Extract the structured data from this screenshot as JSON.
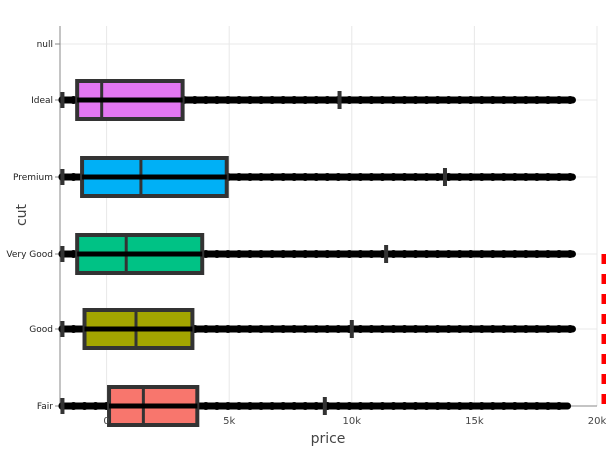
{
  "chart_data": {
    "type": "box",
    "orientation": "horizontal",
    "xlabel": "price",
    "ylabel": "cut",
    "xlim": [
      -1900,
      20000
    ],
    "x_ticks": [
      {
        "value": 0,
        "label": "0"
      },
      {
        "value": 5000,
        "label": "5k"
      },
      {
        "value": 10000,
        "label": "10k"
      },
      {
        "value": 15000,
        "label": "15k"
      },
      {
        "value": 20000,
        "label": "20k"
      }
    ],
    "categories": [
      "null",
      "Ideal",
      "Premium",
      "Very Good",
      "Good",
      "Fair"
    ],
    "boxes": [
      {
        "cut": "Ideal",
        "color": "#e377f2",
        "min": -1800,
        "q1": -1200,
        "median": -200,
        "q3": 3100,
        "upper_fence": 9500,
        "outliers_to": 19000
      },
      {
        "cut": "Premium",
        "color": "#00b0f6",
        "min": -1800,
        "q1": -1000,
        "median": 1400,
        "q3": 4900,
        "upper_fence": 13800,
        "outliers_to": 19000
      },
      {
        "cut": "Very Good",
        "color": "#00c285",
        "min": -1800,
        "q1": -1200,
        "median": 800,
        "q3": 3900,
        "upper_fence": 11400,
        "outliers_to": 19000
      },
      {
        "cut": "Good",
        "color": "#a3a500",
        "min": -1800,
        "q1": -900,
        "median": 1200,
        "q3": 3500,
        "upper_fence": 10000,
        "outliers_to": 19000
      },
      {
        "cut": "Fair",
        "color": "#f8766d",
        "min": -1800,
        "q1": 100,
        "median": 1500,
        "q3": 3700,
        "upper_fence": 8900,
        "outliers_to": 18800
      }
    ],
    "grid": true,
    "legend": "none"
  },
  "colors": {
    "box_outline": "#333333",
    "points": "#000000",
    "annotation": "#ff0000"
  }
}
